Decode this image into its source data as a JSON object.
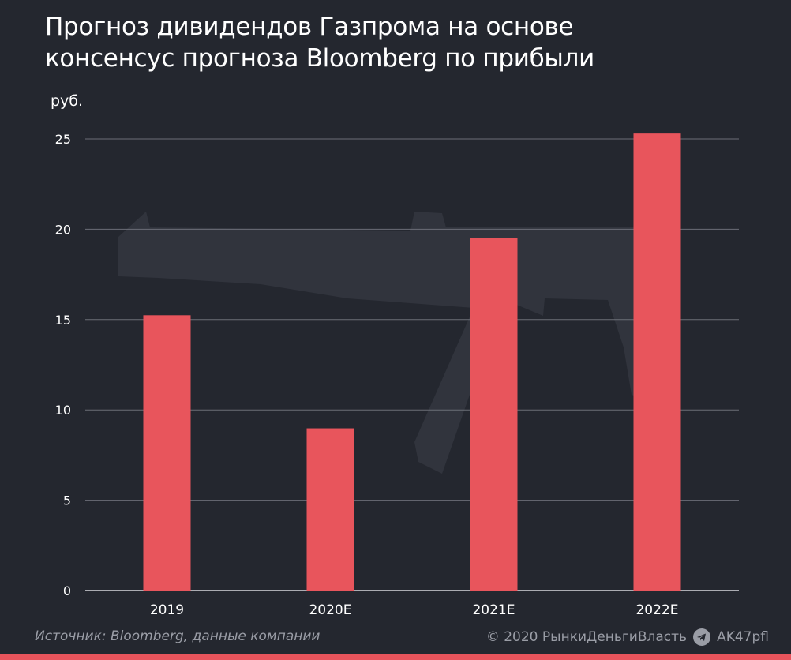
{
  "header": {
    "title_line1": "Прогноз дивидендов Газпрома на основе",
    "title_line2": "консенсус прогноза Bloomberg по прибыли"
  },
  "chart_data": {
    "type": "bar",
    "title": "Прогноз дивидендов Газпрома на основе консенсус прогноза Bloomberg по прибыли",
    "ylabel": "руб.",
    "xlabel": "",
    "categories": [
      "2019",
      "2020E",
      "2021E",
      "2022E"
    ],
    "values": [
      15.24,
      8.98,
      19.5,
      25.3
    ],
    "ylim": [
      0,
      25
    ],
    "yticks": [
      0,
      5,
      10,
      15,
      20,
      25
    ],
    "grid": true,
    "bar_color": "#e8555c"
  },
  "footer": {
    "source": "Источник: Bloomberg, данные компании",
    "copyright": "© 2020  РынкиДеньгиВласть",
    "telegram_handle": "AK47pfl"
  },
  "colors": {
    "background": "#24272f",
    "grid": "#6b6e77",
    "accent": "#e8545c",
    "watermark": "#31343d"
  },
  "icons": {
    "telegram": "telegram-icon",
    "watermark": "rifle-watermark-icon"
  }
}
